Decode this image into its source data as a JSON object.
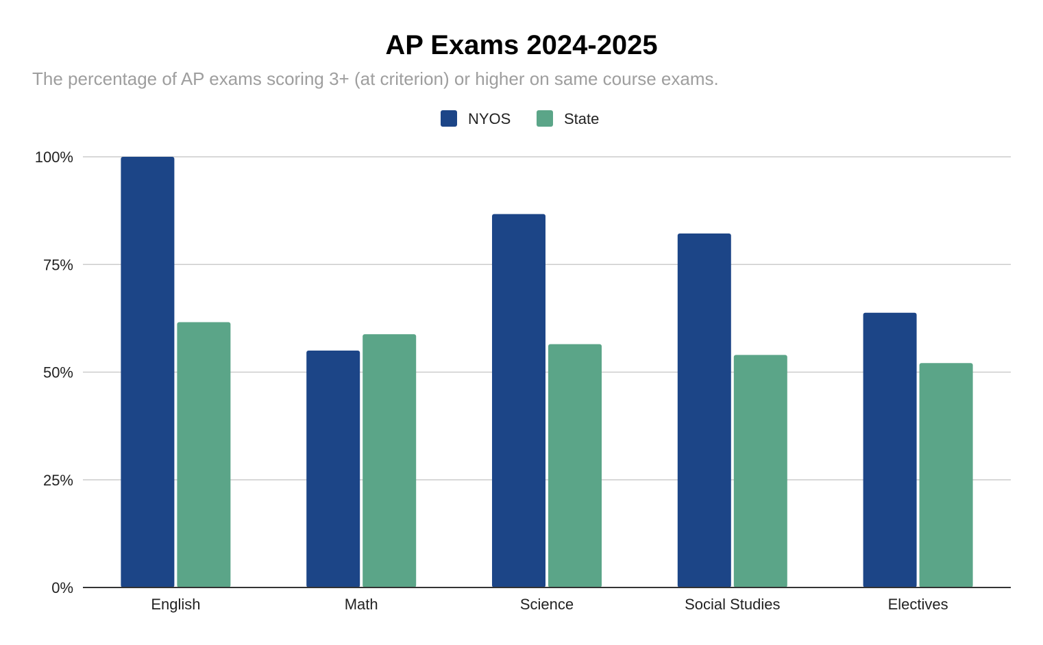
{
  "chart_data": {
    "type": "bar",
    "title": "AP Exams 2024-2025",
    "subtitle": "The percentage of AP exams scoring 3+ (at criterion) or higher on same course exams.",
    "categories": [
      "English",
      "Math",
      "Science",
      "Social Studies",
      "Electives"
    ],
    "series": [
      {
        "name": "NYOS",
        "color": "#1c4587",
        "values": [
          100,
          55,
          86.7,
          82.2,
          63.8
        ]
      },
      {
        "name": "State",
        "color": "#5ba588",
        "values": [
          61.6,
          58.8,
          56.5,
          54,
          52.1
        ]
      }
    ],
    "y_ticks": [
      "0%",
      "25%",
      "50%",
      "75%",
      "100%"
    ],
    "y_tick_values": [
      0,
      25,
      50,
      75,
      100
    ],
    "ylim": [
      0,
      100
    ],
    "xlabel": "",
    "ylabel": "",
    "grid": true,
    "legend_position": "top"
  }
}
